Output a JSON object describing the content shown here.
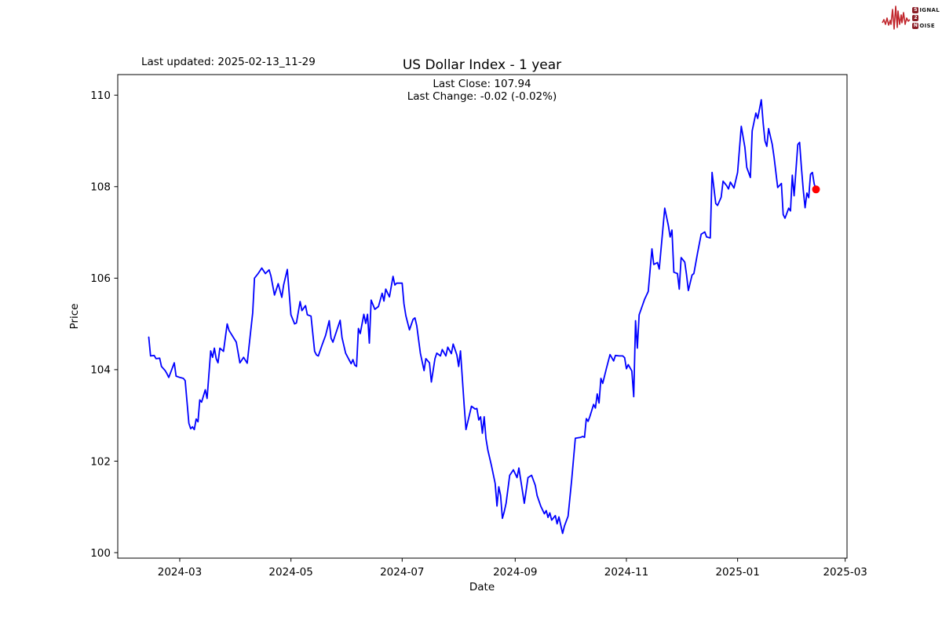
{
  "annotations": {
    "last_updated": "Last updated: 2025-02-13_11-29"
  },
  "logo": {
    "accent": "#c1272d",
    "badge_color": "#8b1e27",
    "rows": [
      {
        "badge": "S",
        "rest": "IGNAL"
      },
      {
        "badge": "2",
        "rest": ""
      },
      {
        "badge": "N",
        "rest": "OISE"
      }
    ]
  },
  "chart_data": {
    "type": "line",
    "title": "US Dollar Index - 1 year",
    "subtitle_lines": [
      "Last Close: 107.94",
      "Last Change: -0.02 (-0.02%)"
    ],
    "xlabel": "Date",
    "ylabel": "Price",
    "last_close": 107.94,
    "last_change": "-0.02 (-0.02%)",
    "line_color": "#0000ff",
    "last_point_color": "#ff0000",
    "grid": false,
    "x_domain": [
      "2024-01-27",
      "2025-03-02"
    ],
    "ylim": [
      99.88,
      110.45
    ],
    "y_ticks": [
      100,
      102,
      104,
      106,
      108,
      110
    ],
    "x_ticks": [
      {
        "date": "2024-03-01",
        "label": "2024-03"
      },
      {
        "date": "2024-05-01",
        "label": "2024-05"
      },
      {
        "date": "2024-07-01",
        "label": "2024-07"
      },
      {
        "date": "2024-09-01",
        "label": "2024-09"
      },
      {
        "date": "2024-11-01",
        "label": "2024-11"
      },
      {
        "date": "2025-01-01",
        "label": "2025-01"
      },
      {
        "date": "2025-03-01",
        "label": "2025-03"
      }
    ],
    "series": [
      {
        "name": "US Dollar Index",
        "points": [
          [
            "2024-02-13",
            104.71
          ],
          [
            "2024-02-14",
            104.3
          ],
          [
            "2024-02-16",
            104.31
          ],
          [
            "2024-02-17",
            104.24
          ],
          [
            "2024-02-19",
            104.25
          ],
          [
            "2024-02-20",
            104.07
          ],
          [
            "2024-02-22",
            103.98
          ],
          [
            "2024-02-23",
            103.91
          ],
          [
            "2024-02-24",
            103.83
          ],
          [
            "2024-02-27",
            104.15
          ],
          [
            "2024-02-28",
            103.86
          ],
          [
            "2024-03-01",
            103.83
          ],
          [
            "2024-03-03",
            103.81
          ],
          [
            "2024-03-04",
            103.76
          ],
          [
            "2024-03-06",
            102.83
          ],
          [
            "2024-03-07",
            102.71
          ],
          [
            "2024-03-08",
            102.75
          ],
          [
            "2024-03-09",
            102.69
          ],
          [
            "2024-03-10",
            102.92
          ],
          [
            "2024-03-11",
            102.86
          ],
          [
            "2024-03-12",
            103.34
          ],
          [
            "2024-03-13",
            103.29
          ],
          [
            "2024-03-15",
            103.56
          ],
          [
            "2024-03-16",
            103.37
          ],
          [
            "2024-03-18",
            104.41
          ],
          [
            "2024-03-19",
            104.27
          ],
          [
            "2024-03-20",
            104.47
          ],
          [
            "2024-03-21",
            104.24
          ],
          [
            "2024-03-22",
            104.15
          ],
          [
            "2024-03-23",
            104.47
          ],
          [
            "2024-03-25",
            104.4
          ],
          [
            "2024-03-27",
            105.0
          ],
          [
            "2024-03-28",
            104.86
          ],
          [
            "2024-04-01",
            104.6
          ],
          [
            "2024-04-03",
            104.15
          ],
          [
            "2024-04-05",
            104.27
          ],
          [
            "2024-04-07",
            104.14
          ],
          [
            "2024-04-10",
            105.24
          ],
          [
            "2024-04-11",
            106.0
          ],
          [
            "2024-04-13",
            106.1
          ],
          [
            "2024-04-15",
            106.22
          ],
          [
            "2024-04-17",
            106.1
          ],
          [
            "2024-04-19",
            106.18
          ],
          [
            "2024-04-20",
            106.05
          ],
          [
            "2024-04-22",
            105.63
          ],
          [
            "2024-04-24",
            105.88
          ],
          [
            "2024-04-26",
            105.58
          ],
          [
            "2024-04-27",
            105.85
          ],
          [
            "2024-04-29",
            106.19
          ],
          [
            "2024-05-01",
            105.2
          ],
          [
            "2024-05-03",
            105.0
          ],
          [
            "2024-05-04",
            105.02
          ],
          [
            "2024-05-06",
            105.49
          ],
          [
            "2024-05-07",
            105.29
          ],
          [
            "2024-05-09",
            105.4
          ],
          [
            "2024-05-10",
            105.2
          ],
          [
            "2024-05-12",
            105.17
          ],
          [
            "2024-05-14",
            104.4
          ],
          [
            "2024-05-15",
            104.32
          ],
          [
            "2024-05-16",
            104.3
          ],
          [
            "2024-05-18",
            104.53
          ],
          [
            "2024-05-20",
            104.75
          ],
          [
            "2024-05-22",
            105.07
          ],
          [
            "2024-05-23",
            104.69
          ],
          [
            "2024-05-24",
            104.6
          ],
          [
            "2024-05-28",
            105.08
          ],
          [
            "2024-05-29",
            104.7
          ],
          [
            "2024-05-31",
            104.36
          ],
          [
            "2024-06-03",
            104.13
          ],
          [
            "2024-06-04",
            104.22
          ],
          [
            "2024-06-05",
            104.1
          ],
          [
            "2024-06-06",
            104.07
          ],
          [
            "2024-06-07",
            104.9
          ],
          [
            "2024-06-08",
            104.79
          ],
          [
            "2024-06-10",
            105.21
          ],
          [
            "2024-06-11",
            105.01
          ],
          [
            "2024-06-12",
            105.21
          ],
          [
            "2024-06-13",
            104.58
          ],
          [
            "2024-06-14",
            105.52
          ],
          [
            "2024-06-16",
            105.32
          ],
          [
            "2024-06-18",
            105.38
          ],
          [
            "2024-06-20",
            105.67
          ],
          [
            "2024-06-21",
            105.5
          ],
          [
            "2024-06-22",
            105.76
          ],
          [
            "2024-06-24",
            105.59
          ],
          [
            "2024-06-26",
            106.04
          ],
          [
            "2024-06-27",
            105.85
          ],
          [
            "2024-06-28",
            105.89
          ],
          [
            "2024-07-01",
            105.89
          ],
          [
            "2024-07-02",
            105.44
          ],
          [
            "2024-07-03",
            105.18
          ],
          [
            "2024-07-05",
            104.87
          ],
          [
            "2024-07-07",
            105.1
          ],
          [
            "2024-07-08",
            105.13
          ],
          [
            "2024-07-09",
            104.96
          ],
          [
            "2024-07-11",
            104.36
          ],
          [
            "2024-07-13",
            103.98
          ],
          [
            "2024-07-14",
            104.24
          ],
          [
            "2024-07-16",
            104.15
          ],
          [
            "2024-07-17",
            103.73
          ],
          [
            "2024-07-19",
            104.24
          ],
          [
            "2024-07-20",
            104.36
          ],
          [
            "2024-07-22",
            104.3
          ],
          [
            "2024-07-23",
            104.44
          ],
          [
            "2024-07-25",
            104.3
          ],
          [
            "2024-07-26",
            104.49
          ],
          [
            "2024-07-28",
            104.35
          ],
          [
            "2024-07-29",
            104.56
          ],
          [
            "2024-07-31",
            104.32
          ],
          [
            "2024-08-01",
            104.07
          ],
          [
            "2024-08-02",
            104.41
          ],
          [
            "2024-08-04",
            103.22
          ],
          [
            "2024-08-05",
            102.69
          ],
          [
            "2024-08-08",
            103.2
          ],
          [
            "2024-08-10",
            103.14
          ],
          [
            "2024-08-11",
            103.15
          ],
          [
            "2024-08-12",
            102.9
          ],
          [
            "2024-08-13",
            102.97
          ],
          [
            "2024-08-14",
            102.61
          ],
          [
            "2024-08-15",
            102.97
          ],
          [
            "2024-08-16",
            102.49
          ],
          [
            "2024-08-17",
            102.24
          ],
          [
            "2024-08-19",
            101.9
          ],
          [
            "2024-08-21",
            101.51
          ],
          [
            "2024-08-22",
            101.02
          ],
          [
            "2024-08-23",
            101.44
          ],
          [
            "2024-08-24",
            101.25
          ],
          [
            "2024-08-25",
            100.75
          ],
          [
            "2024-08-26",
            100.9
          ],
          [
            "2024-08-27",
            101.08
          ],
          [
            "2024-08-29",
            101.69
          ],
          [
            "2024-08-31",
            101.81
          ],
          [
            "2024-09-02",
            101.64
          ],
          [
            "2024-09-03",
            101.85
          ],
          [
            "2024-09-05",
            101.34
          ],
          [
            "2024-09-06",
            101.08
          ],
          [
            "2024-09-08",
            101.64
          ],
          [
            "2024-09-10",
            101.69
          ],
          [
            "2024-09-12",
            101.47
          ],
          [
            "2024-09-13",
            101.25
          ],
          [
            "2024-09-15",
            101.02
          ],
          [
            "2024-09-17",
            100.85
          ],
          [
            "2024-09-18",
            100.92
          ],
          [
            "2024-09-19",
            100.77
          ],
          [
            "2024-09-20",
            100.87
          ],
          [
            "2024-09-21",
            100.71
          ],
          [
            "2024-09-23",
            100.81
          ],
          [
            "2024-09-24",
            100.63
          ],
          [
            "2024-09-25",
            100.78
          ],
          [
            "2024-09-27",
            100.42
          ],
          [
            "2024-09-28",
            100.58
          ],
          [
            "2024-09-30",
            100.8
          ],
          [
            "2024-10-02",
            101.6
          ],
          [
            "2024-10-04",
            102.5
          ],
          [
            "2024-10-07",
            102.52
          ],
          [
            "2024-10-08",
            102.54
          ],
          [
            "2024-10-09",
            102.52
          ],
          [
            "2024-10-10",
            102.93
          ],
          [
            "2024-10-11",
            102.87
          ],
          [
            "2024-10-12",
            102.98
          ],
          [
            "2024-10-14",
            103.24
          ],
          [
            "2024-10-15",
            103.16
          ],
          [
            "2024-10-16",
            103.47
          ],
          [
            "2024-10-17",
            103.27
          ],
          [
            "2024-10-18",
            103.81
          ],
          [
            "2024-10-19",
            103.7
          ],
          [
            "2024-10-21",
            104.02
          ],
          [
            "2024-10-23",
            104.33
          ],
          [
            "2024-10-25",
            104.19
          ],
          [
            "2024-10-26",
            104.31
          ],
          [
            "2024-10-28",
            104.3
          ],
          [
            "2024-10-30",
            104.3
          ],
          [
            "2024-10-31",
            104.26
          ],
          [
            "2024-11-01",
            104.02
          ],
          [
            "2024-11-02",
            104.11
          ],
          [
            "2024-11-04",
            103.97
          ],
          [
            "2024-11-05",
            103.41
          ],
          [
            "2024-11-06",
            105.07
          ],
          [
            "2024-11-07",
            104.47
          ],
          [
            "2024-11-08",
            105.2
          ],
          [
            "2024-11-11",
            105.54
          ],
          [
            "2024-11-13",
            105.71
          ],
          [
            "2024-11-15",
            106.64
          ],
          [
            "2024-11-16",
            106.3
          ],
          [
            "2024-11-18",
            106.34
          ],
          [
            "2024-11-19",
            106.2
          ],
          [
            "2024-11-22",
            107.53
          ],
          [
            "2024-11-24",
            107.15
          ],
          [
            "2024-11-25",
            106.9
          ],
          [
            "2024-11-26",
            107.05
          ],
          [
            "2024-11-27",
            106.13
          ],
          [
            "2024-11-29",
            106.1
          ],
          [
            "2024-11-30",
            105.76
          ],
          [
            "2024-12-01",
            106.45
          ],
          [
            "2024-12-03",
            106.35
          ],
          [
            "2024-12-04",
            106.07
          ],
          [
            "2024-12-05",
            105.73
          ],
          [
            "2024-12-07",
            106.07
          ],
          [
            "2024-12-08",
            106.1
          ],
          [
            "2024-12-10",
            106.55
          ],
          [
            "2024-12-12",
            106.96
          ],
          [
            "2024-12-14",
            107.01
          ],
          [
            "2024-12-15",
            106.9
          ],
          [
            "2024-12-17",
            106.88
          ],
          [
            "2024-12-18",
            108.31
          ],
          [
            "2024-12-20",
            107.63
          ],
          [
            "2024-12-21",
            107.59
          ],
          [
            "2024-12-23",
            107.77
          ],
          [
            "2024-12-24",
            108.12
          ],
          [
            "2024-12-26",
            108.02
          ],
          [
            "2024-12-27",
            107.95
          ],
          [
            "2024-12-28",
            108.1
          ],
          [
            "2024-12-30",
            107.97
          ],
          [
            "2025-01-01",
            108.31
          ],
          [
            "2025-01-03",
            109.32
          ],
          [
            "2025-01-05",
            108.86
          ],
          [
            "2025-01-06",
            108.42
          ],
          [
            "2025-01-08",
            108.2
          ],
          [
            "2025-01-09",
            109.22
          ],
          [
            "2025-01-11",
            109.61
          ],
          [
            "2025-01-12",
            109.49
          ],
          [
            "2025-01-14",
            109.9
          ],
          [
            "2025-01-15",
            109.39
          ],
          [
            "2025-01-16",
            109.0
          ],
          [
            "2025-01-17",
            108.88
          ],
          [
            "2025-01-18",
            109.27
          ],
          [
            "2025-01-20",
            108.92
          ],
          [
            "2025-01-21",
            108.64
          ],
          [
            "2025-01-23",
            107.98
          ],
          [
            "2025-01-25",
            108.07
          ],
          [
            "2025-01-26",
            107.39
          ],
          [
            "2025-01-27",
            107.31
          ],
          [
            "2025-01-29",
            107.53
          ],
          [
            "2025-01-30",
            107.47
          ],
          [
            "2025-01-31",
            108.25
          ],
          [
            "2025-02-01",
            107.8
          ],
          [
            "2025-02-03",
            108.92
          ],
          [
            "2025-02-04",
            108.97
          ],
          [
            "2025-02-05",
            108.42
          ],
          [
            "2025-02-06",
            107.92
          ],
          [
            "2025-02-07",
            107.54
          ],
          [
            "2025-02-08",
            107.86
          ],
          [
            "2025-02-09",
            107.76
          ],
          [
            "2025-02-10",
            108.27
          ],
          [
            "2025-02-11",
            108.31
          ],
          [
            "2025-02-12",
            108.06
          ],
          [
            "2025-02-13",
            107.94
          ]
        ]
      }
    ]
  }
}
